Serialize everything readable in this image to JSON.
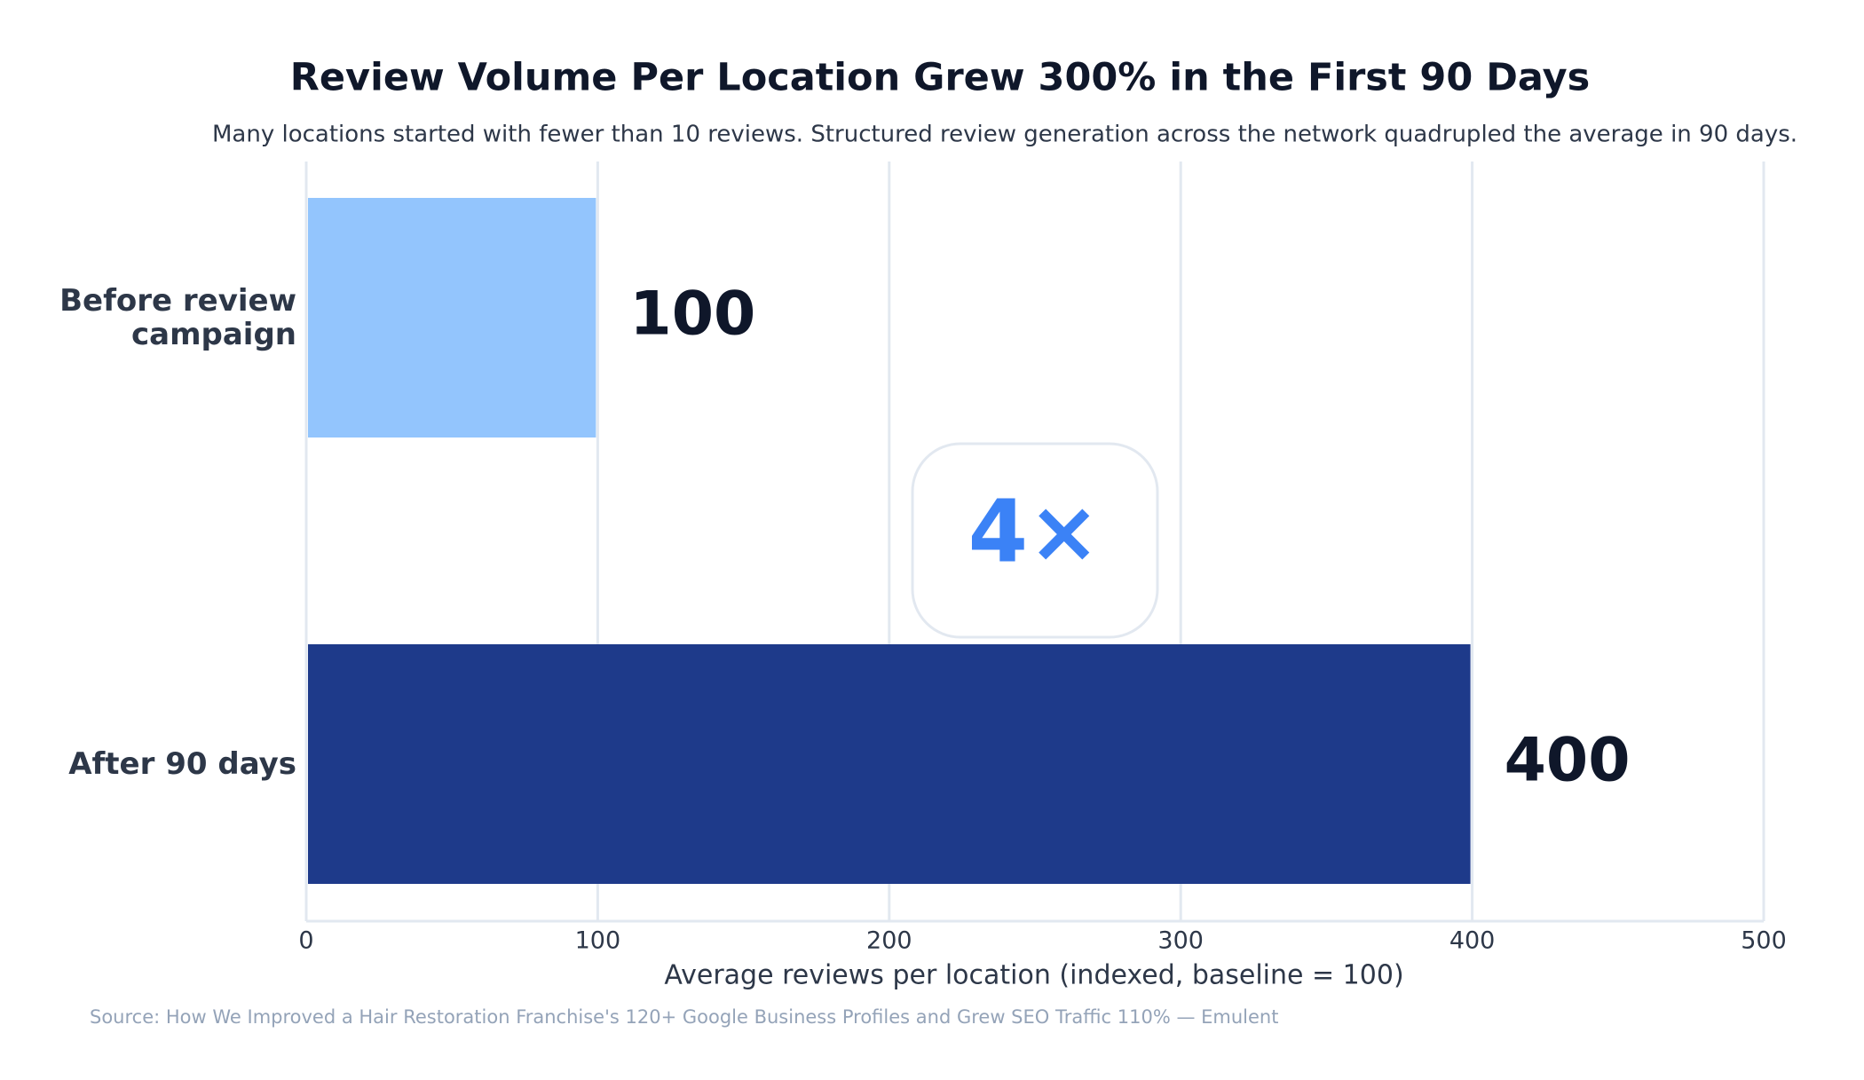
{
  "chart_data": {
    "type": "bar",
    "orientation": "horizontal",
    "title": "Review Volume Per Location Grew 300% in the First 90 Days",
    "subtitle": "Many locations started with fewer than 10 reviews. Structured review generation across the network quadrupled the average in 90 days.",
    "categories": [
      "Before review campaign",
      "After 90 days"
    ],
    "values": [
      100,
      400
    ],
    "colors": [
      "#93c5fd",
      "#1e3a8a"
    ],
    "xlim": [
      0,
      500
    ],
    "xticks": [
      0,
      100,
      200,
      300,
      400,
      500
    ],
    "grid": true,
    "x_label": "Average reviews per location (indexed, baseline = 100)",
    "annotation": "4×",
    "source": "Source: How We Improved a Hair Restoration Franchise's 120+ Google Business Profiles and Grew SEO Traffic 110% — Emulent"
  }
}
